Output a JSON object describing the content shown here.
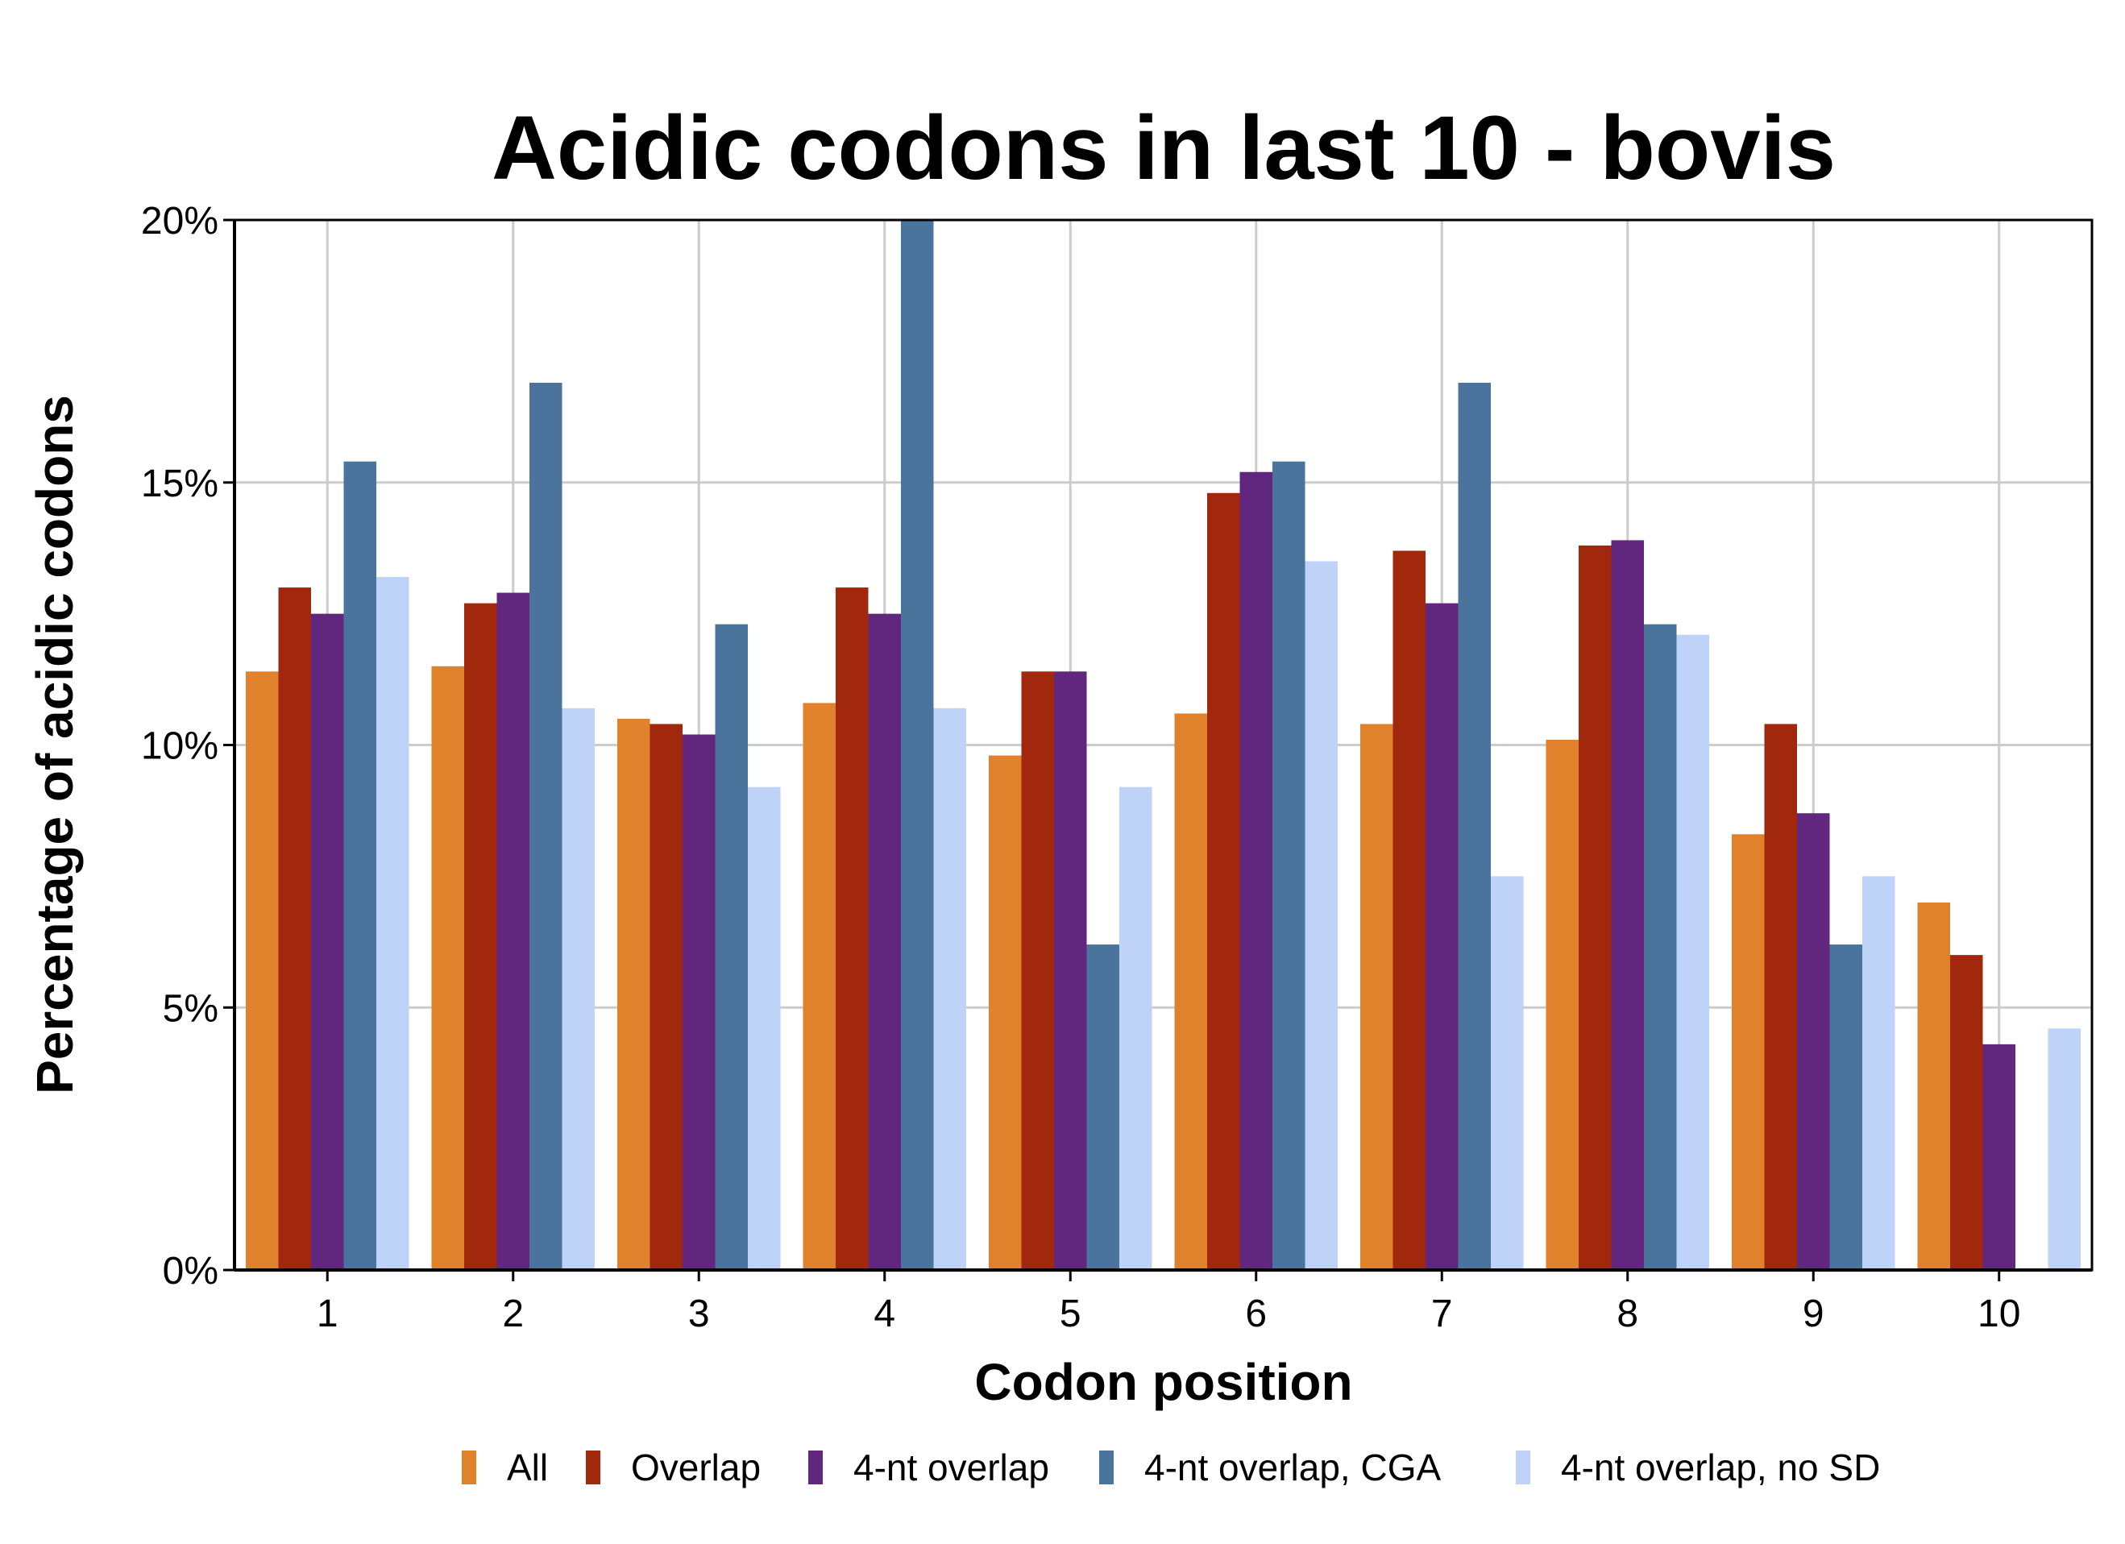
{
  "chart_data": {
    "type": "bar",
    "title": "Acidic codons in last 10 - bovis",
    "xlabel": "Codon position",
    "ylabel": "Percentage of acidic codons",
    "categories": [
      "1",
      "2",
      "3",
      "4",
      "5",
      "6",
      "7",
      "8",
      "9",
      "10"
    ],
    "ylim": [
      0,
      20
    ],
    "yticks": [
      0,
      5,
      10,
      15,
      20
    ],
    "ytick_labels": [
      "0%",
      "5%",
      "10%",
      "15%",
      "20%"
    ],
    "grid": true,
    "legend_position": "bottom",
    "series": [
      {
        "name": "All",
        "color": "#e0812b",
        "values": [
          11.4,
          11.5,
          10.5,
          10.8,
          9.8,
          10.6,
          10.4,
          10.1,
          8.3,
          7.0
        ]
      },
      {
        "name": "Overlap",
        "color": "#a2280d",
        "values": [
          13.0,
          12.7,
          10.4,
          13.0,
          11.4,
          14.8,
          13.7,
          13.8,
          10.4,
          6.0
        ]
      },
      {
        "name": "4-nt overlap",
        "color": "#61277e",
        "values": [
          12.5,
          12.9,
          10.2,
          12.5,
          11.4,
          15.2,
          12.7,
          13.9,
          8.7,
          4.3
        ]
      },
      {
        "name": "4-nt overlap, CGA",
        "color": "#4a749c",
        "values": [
          15.4,
          16.9,
          12.3,
          20.0,
          6.2,
          15.4,
          16.9,
          12.3,
          6.2,
          0
        ]
      },
      {
        "name": "4-nt overlap, no SD",
        "color": "#bfd2f7",
        "values": [
          13.2,
          10.7,
          9.2,
          10.7,
          9.2,
          13.5,
          7.5,
          12.1,
          7.5,
          4.6
        ]
      }
    ]
  }
}
